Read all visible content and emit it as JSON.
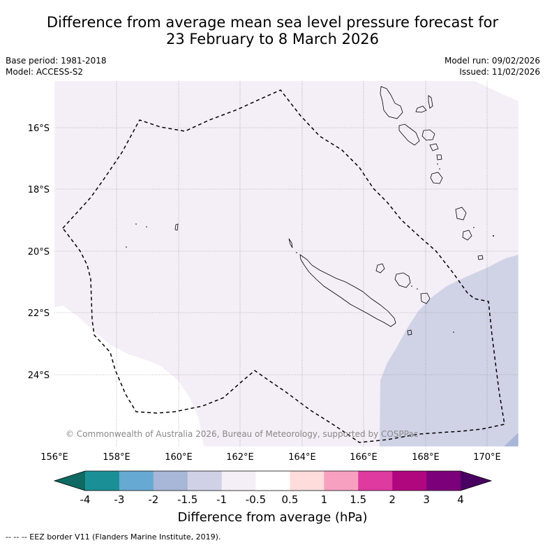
{
  "title": {
    "line1": "Difference from average mean sea level pressure forecast for",
    "line2": "23 February to 8 March 2026"
  },
  "meta": {
    "base_period": "Base period: 1981-2018",
    "model": "Model: ACCESS-S2",
    "model_run": "Model run: 09/02/2026",
    "issued": "Issued: 11/02/2026"
  },
  "map": {
    "lon_labels": [
      "156°E",
      "158°E",
      "160°E",
      "162°E",
      "164°E",
      "166°E",
      "168°E",
      "170°E"
    ],
    "lat_labels": [
      "16°S",
      "18°S",
      "20°S",
      "22°S",
      "24°S"
    ],
    "copyright": "© Commonwealth of Australia 2026, Bureau of Meteorology, supported by COSPPac",
    "colors": {
      "neg_0_5_to_1": "#f4eef6",
      "neg_1_to_1_5": "#d0d3e6",
      "coast": "#000000",
      "eez": "#000000",
      "grid": "#888888"
    }
  },
  "colorbar": {
    "tick_labels": [
      "-4",
      "-3",
      "-2",
      "-1.5",
      "-1",
      "-0.5",
      "0.5",
      "1",
      "1.5",
      "2",
      "3",
      "4"
    ],
    "bin_colors": [
      "#1a9096",
      "#66a9d3",
      "#a8b6d8",
      "#d0d0e6",
      "#f4eef6",
      "#ffffff",
      "#ffdcdc",
      "#f8a0c0",
      "#de3aa0",
      "#b0077f",
      "#7c0079"
    ],
    "under_color": "#0e6a62",
    "over_color": "#4a0062",
    "label": "Difference from average (hPa)"
  },
  "footnote": "--  --  -- EEZ border V11 (Flanders Marine Institute, 2019)."
}
